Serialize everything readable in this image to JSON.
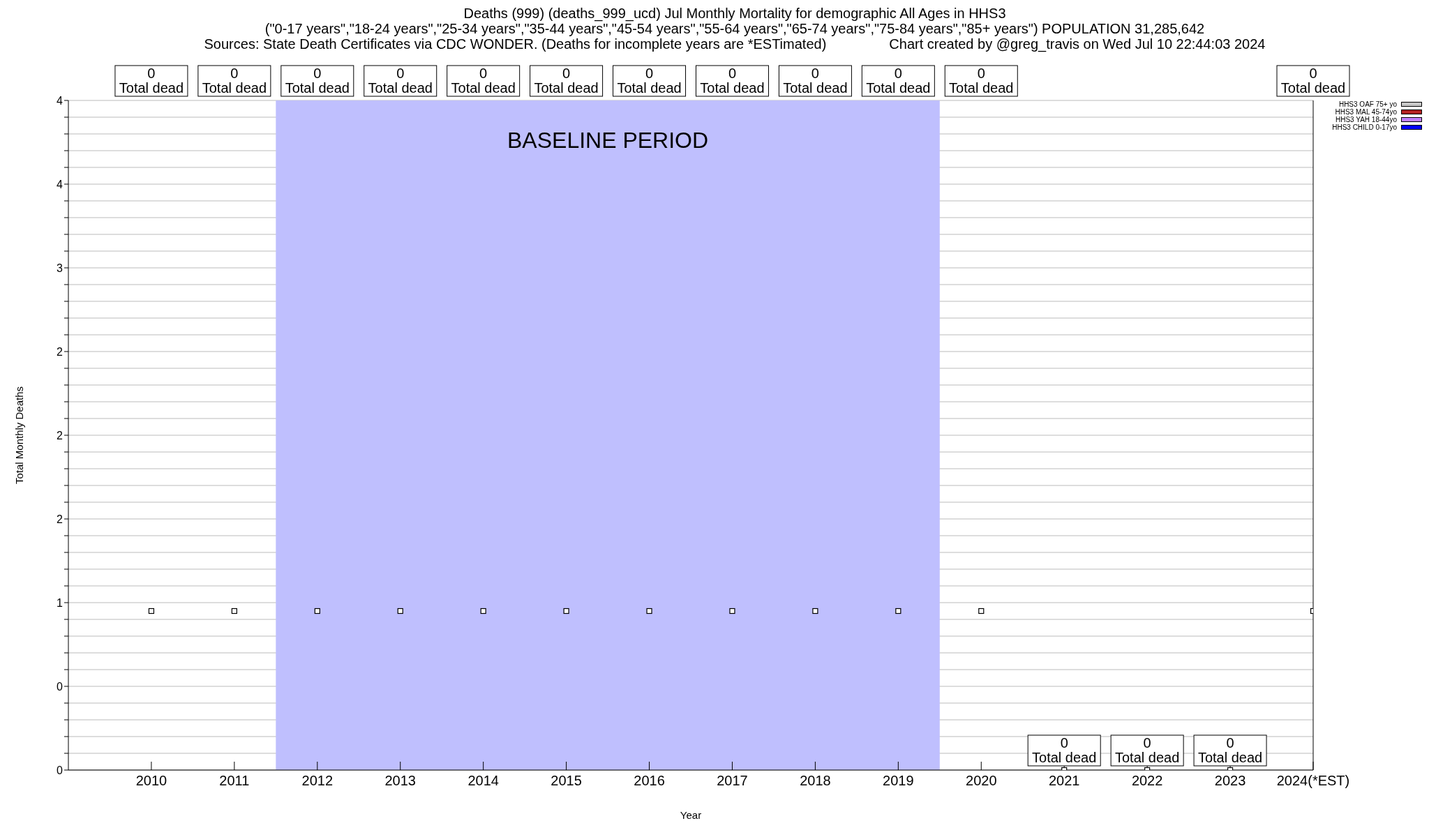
{
  "chart_data": {
    "type": "scatter",
    "title": "Deaths (999) (deaths_999_ucd) Jul Monthly Mortality for demographic All Ages in HHS3",
    "subtitle": "(\"0-17 years\",\"18-24 years\",\"25-34 years\",\"35-44 years\",\"45-54 years\",\"55-64 years\",\"65-74 years\",\"75-84 years\",\"85+ years\") POPULATION 31,285,642",
    "annotations": [
      "Sources: State Death Certificates via CDC WONDER. (Deaths for incomplete years are *ESTimated)",
      "Chart created by @greg_travis on Wed Jul 10 22:44:03 2024",
      "0\nTotal dead",
      "0\nTotal dead",
      "0\nTotal dead",
      "0\nTotal dead",
      "0\nTotal dead",
      "0\nTotal dead",
      "0\nTotal dead",
      "0\nTotal dead",
      "0\nTotal dead",
      "0\nTotal dead",
      "0\nTotal dead",
      "0\nTotal dead",
      "0\nTotal dead",
      "0\nTotal dead",
      "0\nTotal dead"
    ],
    "xlabel": "Year",
    "ylabel": "Total Monthly Deaths",
    "x": [
      2010,
      2011,
      2012,
      2013,
      2014,
      2015,
      2016,
      2017,
      2018,
      2019,
      2020,
      2021,
      2022,
      2023,
      2024
    ],
    "series": [
      {
        "color": "#000000",
        "marker": "square",
        "values": [
          0.95,
          0.95,
          0.95,
          0.95,
          0.95,
          0.95,
          0.95,
          0.95,
          0.95,
          0.95,
          0.95,
          0,
          0,
          0,
          0.95
        ]
      },
      {
        "type": "bar",
        "name": "HHS3 OAF 75+ yo",
        "color": "#c8c8c8",
        "values": [
          null,
          null,
          null,
          null,
          null,
          null,
          null,
          null,
          null,
          null,
          null,
          null,
          null,
          null,
          null
        ]
      },
      {
        "type": "bar",
        "name": "HHS3 MAL 45-74yo",
        "color": "#b22222",
        "values": [
          null,
          null,
          null,
          null,
          null,
          null,
          null,
          null,
          null,
          null,
          null,
          null,
          null,
          null,
          null
        ]
      },
      {
        "type": "bar",
        "name": "HHS3 YAH 18-44yo",
        "color": "#c080ff",
        "values": [
          null,
          null,
          null,
          null,
          null,
          null,
          null,
          null,
          null,
          null,
          null,
          null,
          null,
          null,
          null
        ]
      },
      {
        "type": "bar",
        "name": "HHS3 CHILD 0-17yo",
        "color": "#0000ff",
        "values": [
          null,
          null,
          null,
          null,
          null,
          null,
          null,
          null,
          null,
          null,
          null,
          null,
          null,
          null,
          null
        ]
      }
    ],
    "bands": [
      {
        "axis": "x",
        "from": 2011.5,
        "to": 2019.5,
        "label": "BASELINE PERIOD",
        "color": "#bfbffe"
      }
    ],
    "xlim": [
      2009,
      2024
    ],
    "xticks": [
      2010,
      2011,
      2012,
      2013,
      2014,
      2015,
      2016,
      2017,
      2018,
      2019,
      2020,
      2021,
      2022,
      2023,
      {
        "value": 2024,
        "label": "2024(*EST)"
      }
    ],
    "ylim": [
      0,
      4
    ],
    "yticks": [
      {
        "value": 0,
        "label": "0"
      },
      {
        "value": 0.1,
        "label": null
      },
      {
        "value": 0.2,
        "label": null
      },
      {
        "value": 0.3,
        "label": null
      },
      {
        "value": 0.4,
        "label": null
      },
      {
        "value": 0.5,
        "label": "0"
      },
      {
        "value": 0.6,
        "label": null
      },
      {
        "value": 0.7,
        "label": null
      },
      {
        "value": 0.8,
        "label": null
      },
      {
        "value": 0.9,
        "label": null
      },
      {
        "value": 1,
        "label": "1"
      },
      {
        "value": 1.1,
        "label": null
      },
      {
        "value": 1.2,
        "label": null
      },
      {
        "value": 1.3,
        "label": null
      },
      {
        "value": 1.4,
        "label": null
      },
      {
        "value": 1.5,
        "label": "2"
      },
      {
        "value": 1.6,
        "label": null
      },
      {
        "value": 1.7,
        "label": null
      },
      {
        "value": 1.8,
        "label": null
      },
      {
        "value": 1.9,
        "label": null
      },
      {
        "value": 2,
        "label": "2"
      },
      {
        "value": 2.1,
        "label": null
      },
      {
        "value": 2.2,
        "label": null
      },
      {
        "value": 2.3,
        "label": null
      },
      {
        "value": 2.4,
        "label": null
      },
      {
        "value": 2.5,
        "label": "2"
      },
      {
        "value": 2.6,
        "label": null
      },
      {
        "value": 2.7,
        "label": null
      },
      {
        "value": 2.8,
        "label": null
      },
      {
        "value": 2.9,
        "label": null
      },
      {
        "value": 3,
        "label": "3"
      },
      {
        "value": 3.1,
        "label": null
      },
      {
        "value": 3.2,
        "label": null
      },
      {
        "value": 3.3,
        "label": null
      },
      {
        "value": 3.4,
        "label": null
      },
      {
        "value": 3.5,
        "label": "4"
      },
      {
        "value": 3.6,
        "label": null
      },
      {
        "value": 3.7,
        "label": null
      },
      {
        "value": 3.8,
        "label": null
      },
      {
        "value": 3.9,
        "label": null
      },
      {
        "value": 4,
        "label": "4"
      }
    ],
    "grid": "y",
    "legend": "top right"
  }
}
